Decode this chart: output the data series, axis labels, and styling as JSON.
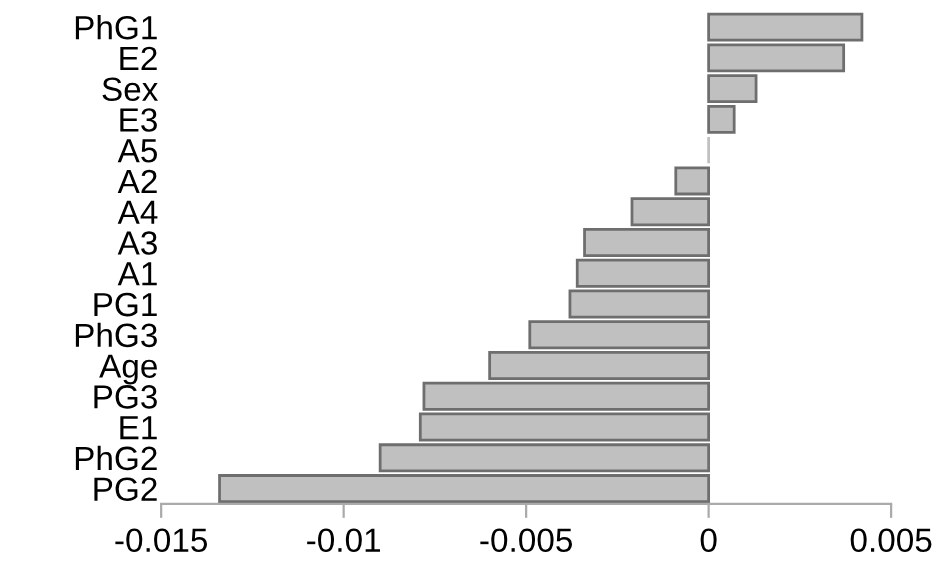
{
  "chart_data": {
    "type": "bar",
    "orientation": "horizontal",
    "categories": [
      "PhG1",
      "E2",
      "Sex",
      "E3",
      "A5",
      "A2",
      "A4",
      "A3",
      "A1",
      "PG1",
      "PhG3",
      "Age",
      "PG3",
      "E1",
      "PhG2",
      "PG2"
    ],
    "values": [
      0.0042,
      0.0037,
      0.0013,
      0.0007,
      0,
      -0.0009,
      -0.0021,
      -0.0034,
      -0.0036,
      -0.0038,
      -0.0049,
      -0.006,
      -0.0078,
      -0.0079,
      -0.009,
      -0.0134
    ],
    "color": "#c0c0c0",
    "xlim": [
      -0.015,
      0.005
    ],
    "xticks": [
      -0.015,
      -0.01,
      -0.005,
      0,
      0.005
    ],
    "grid": false,
    "legend": false
  }
}
